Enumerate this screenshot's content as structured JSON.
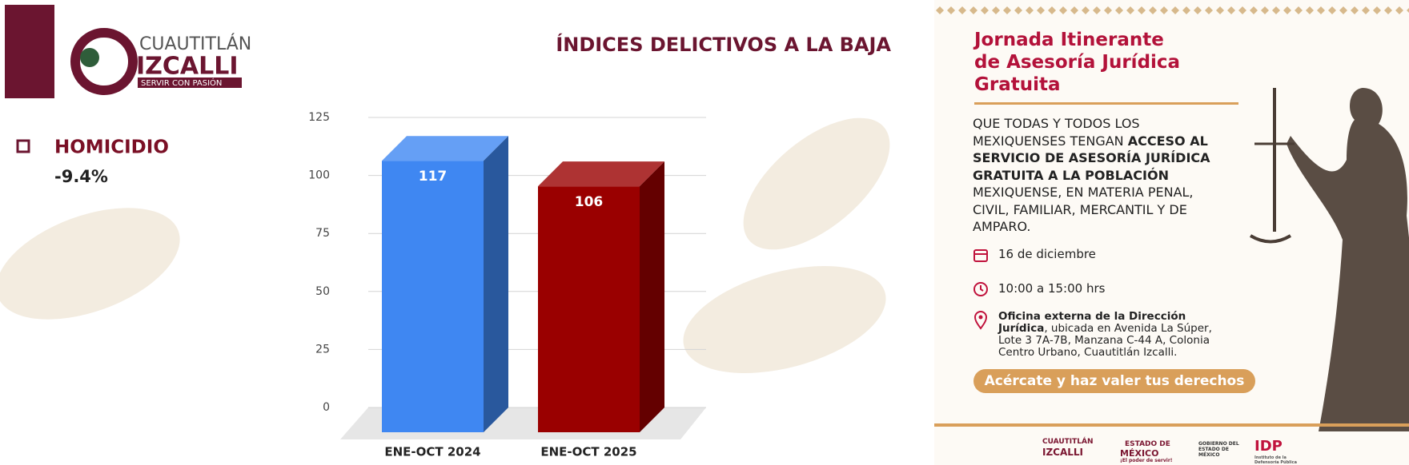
{
  "logo": {
    "city": "CUAUTITLÁN",
    "name": "IZCALLI",
    "motto": "SERVIR CON PASIÓN"
  },
  "indicator": {
    "label": "HOMICIDIO",
    "change": "-9.4%"
  },
  "chart_data": {
    "type": "bar",
    "title": "ÍNDICES DELICTIVOS A LA BAJA",
    "categories": [
      "ENE-OCT 2024",
      "ENE-OCT 2025"
    ],
    "values": [
      117,
      106
    ],
    "colors": [
      "#3f87f2",
      "#9a0000"
    ],
    "ylim": [
      0,
      125
    ],
    "yticks": [
      0,
      25,
      50,
      75,
      100,
      125
    ],
    "grid": true
  },
  "poster": {
    "title": [
      "Jornada Itinerante",
      "de Asesoría Jurídica",
      "Gratuita"
    ],
    "intro": [
      "QUE TODAS Y TODOS LOS MEXIQUENSES TENGAN ",
      "ACCESO AL SERVICIO DE ASESORÍA JURÍDICA GRATUITA A LA POBLACIÓN",
      " MEXIQUENSE, EN MATERIA PENAL, CIVIL, FAMILIAR, MERCANTIL Y DE AMPARO."
    ],
    "date": "16 de diciembre",
    "time": "10:00 a 15:00 hrs",
    "place": "Oficina externa de la Dirección Jurídica",
    "address": ", ubicada en Avenida La Súper, Lote 3 7A-7B, Manzana C-44 A, Colonia Centro Urbano, Cuautitlán Izcalli.",
    "button": "Acércate y haz valer tus derechos",
    "footer": [
      "CUAUTITLÁN",
      "IZCALLI",
      "ESTADO DE",
      "MÉXICO",
      "¡El poder de servir!",
      "GOBIERNO DEL ESTADO DE MÉXICO",
      "IDP",
      "Instituto de la Defensoría Pública"
    ]
  }
}
